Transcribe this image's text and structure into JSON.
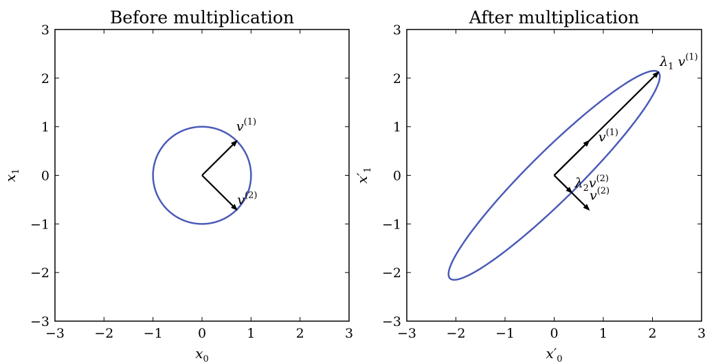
{
  "chart_data": [
    {
      "type": "line",
      "title": "Before multiplication",
      "xlabel": "x0",
      "ylabel": "x1",
      "xlim": [
        -3,
        3
      ],
      "ylim": [
        -3,
        3
      ],
      "ticks": [
        -3,
        -2,
        -1,
        0,
        1,
        2,
        3
      ],
      "tick_labels": [
        "−3",
        "−2",
        "−1",
        "0",
        "1",
        "2",
        "3"
      ],
      "grid": false,
      "curve": {
        "shape": "ellipse",
        "center": [
          0,
          0
        ],
        "axes": [
          [
            0.707,
            0.707
          ],
          [
            0.707,
            -0.707
          ]
        ],
        "lengths": [
          1,
          1
        ],
        "color": "#4a5ab8"
      },
      "vectors": [
        {
          "from": [
            0,
            0
          ],
          "to": [
            0.707,
            0.707
          ],
          "label": "v(1)"
        },
        {
          "from": [
            0,
            0
          ],
          "to": [
            0.707,
            -0.707
          ],
          "label": "v(2)"
        }
      ],
      "annotations": [
        {
          "at": [
            0.7,
            0.92
          ],
          "base": "v",
          "sup": "(1)"
        },
        {
          "at": [
            0.72,
            -0.59
          ],
          "base": "v",
          "sup": "(2)"
        }
      ]
    },
    {
      "type": "line",
      "title": "After multiplication",
      "xlabel": "x′0",
      "ylabel": "x′1",
      "xlim": [
        -3,
        3
      ],
      "ylim": [
        -3,
        3
      ],
      "ticks": [
        -3,
        -2,
        -1,
        0,
        1,
        2,
        3
      ],
      "tick_labels": [
        "−3",
        "−2",
        "−1",
        "0",
        "1",
        "2",
        "3"
      ],
      "grid": false,
      "curve": {
        "shape": "ellipse",
        "center": [
          0,
          0
        ],
        "axes": [
          [
            0.707,
            0.707
          ],
          [
            0.707,
            -0.707
          ]
        ],
        "lengths": [
          3,
          0.5
        ],
        "color": "#4a5ab8"
      },
      "vectors": [
        {
          "from": [
            0,
            0
          ],
          "to": [
            2.12,
            2.12
          ],
          "label": "λ1 v(1)"
        },
        {
          "from": [
            0,
            0
          ],
          "to": [
            0.707,
            0.707
          ],
          "label": "v(1)"
        },
        {
          "from": [
            0,
            0
          ],
          "to": [
            0.354,
            -0.354
          ],
          "label": "λ2 v(2)"
        },
        {
          "from": [
            0,
            0
          ],
          "to": [
            0.707,
            -0.707
          ],
          "label": "v(2)"
        }
      ],
      "annotations": [
        {
          "at": [
            2.15,
            2.25
          ],
          "base": "λ",
          "sub": "1",
          "base2": " v",
          "sup": "(1)"
        },
        {
          "at": [
            0.9,
            0.7
          ],
          "base": "v",
          "sup": "(1)"
        },
        {
          "at": [
            0.42,
            -0.25
          ],
          "base": "λ",
          "sub": "2",
          "base2": "v",
          "sup": "(2)"
        },
        {
          "at": [
            0.72,
            -0.5
          ],
          "base": "v",
          "sup": "(2)"
        }
      ]
    }
  ]
}
